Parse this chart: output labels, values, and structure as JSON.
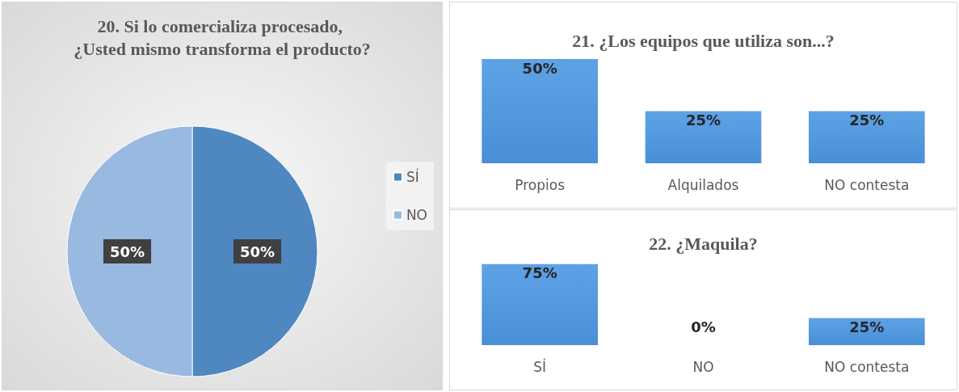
{
  "chart_data": [
    {
      "type": "pie",
      "title": "20. Si lo comercializa procesado, ¿Usted mismo transforma el producto?",
      "categories": [
        "SÍ",
        "NO"
      ],
      "values": [
        50,
        50
      ],
      "colors": [
        "#4f88c0",
        "#98b9e0"
      ],
      "value_labels": [
        "50%",
        "50%"
      ],
      "legend": "right"
    },
    {
      "type": "bar",
      "title": "21. ¿Los equipos que utiliza son...?",
      "categories": [
        "Propios",
        "Alquilados",
        "NO contesta"
      ],
      "values": [
        50,
        25,
        25
      ],
      "color": "#4a8fd6",
      "value_labels": [
        "50%",
        "25%",
        "25%"
      ]
    },
    {
      "type": "bar",
      "title": "22. ¿Maquila?",
      "categories": [
        "SÍ",
        "NO",
        "NO contesta"
      ],
      "values": [
        75,
        0,
        25
      ],
      "color": "#4a8fd6",
      "value_labels": [
        "75%",
        "0%",
        "25%"
      ]
    }
  ]
}
